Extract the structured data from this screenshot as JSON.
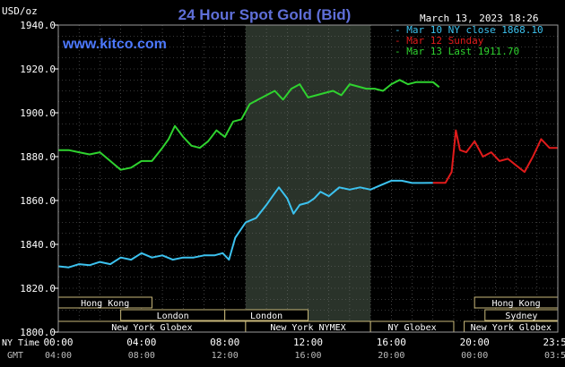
{
  "header": {
    "unit": "USD/oz",
    "title": "24 Hour Spot Gold (Bid)",
    "date": "March 13, 2023 18:26",
    "watermark": "www.kitco.com"
  },
  "colors": {
    "background": "#000000",
    "grid": "#6e6e6e",
    "text": "#ffffff",
    "title": "#5f6fd8",
    "watermark": "#4d79ff",
    "series_prev": "#3cc2ef",
    "series_sunday": "#e11b1b",
    "series_current": "#2fd32f",
    "highlight_band": "#2a332a",
    "market_box_fill": "#000000",
    "market_box_border": "#c8b87a",
    "market_text": "#ffffff"
  },
  "chart_data": {
    "type": "line",
    "ylabel": "USD/oz",
    "ylim": [
      1800,
      1940
    ],
    "yticks": [
      "1940.0",
      "1920.0",
      "1900.0",
      "1880.0",
      "1860.0",
      "1840.0",
      "1820.0",
      "1800.0"
    ],
    "ytick_values": [
      1940,
      1920,
      1900,
      1880,
      1860,
      1840,
      1820,
      1800
    ],
    "xlim_hours": [
      0,
      24
    ],
    "x_ny_labels": [
      "00:00",
      "04:00",
      "08:00",
      "12:00",
      "16:00",
      "20:00",
      "23:59"
    ],
    "x_gmt_labels": [
      "04:00",
      "08:00",
      "12:00",
      "16:00",
      "20:00",
      "00:00",
      "03:59"
    ],
    "x_tick_hours": [
      0,
      4,
      8,
      12,
      16,
      20,
      24
    ],
    "x_row_labels": {
      "ny": "NY Time",
      "gmt": "GMT"
    },
    "highlight_hours": [
      9,
      15
    ],
    "legend": [
      {
        "label": "Mar 10 NY close 1868.10",
        "color": "#3cc2ef"
      },
      {
        "label": "Mar 12 Sunday",
        "color": "#e11b1b"
      },
      {
        "label": "Mar 13 Last 1911.70",
        "color": "#2fd32f"
      }
    ],
    "series": [
      {
        "name": "Mar 10 NY close 1868.10",
        "color": "#3cc2ef",
        "x": [
          0,
          0.5,
          1,
          1.5,
          2,
          2.5,
          3,
          3.5,
          4,
          4.5,
          5,
          5.5,
          6,
          6.5,
          7,
          7.5,
          7.9,
          8.2,
          8.5,
          9,
          9.5,
          10,
          10.3,
          10.6,
          11,
          11.3,
          11.6,
          12,
          12.3,
          12.6,
          13,
          13.5,
          14,
          14.5,
          15,
          15.5,
          16,
          16.5,
          17,
          17.5,
          18
        ],
        "y": [
          1830,
          1829.5,
          1831,
          1830.5,
          1832,
          1831,
          1834,
          1833,
          1836,
          1834,
          1835,
          1833,
          1834,
          1834,
          1835,
          1835,
          1836,
          1833,
          1843,
          1850,
          1852,
          1858,
          1862,
          1866,
          1861,
          1854,
          1858,
          1859,
          1861,
          1864,
          1862,
          1866,
          1865,
          1866,
          1865,
          1867,
          1869,
          1869,
          1868,
          1868,
          1868.1
        ]
      },
      {
        "name": "Mar 12 Sunday",
        "color": "#e11b1b",
        "x": [
          18,
          18.6,
          18.9,
          19.1,
          19.3,
          19.6,
          20,
          20.4,
          20.8,
          21.2,
          21.6,
          22,
          22.4,
          22.8,
          23.2,
          23.6,
          24
        ],
        "y": [
          1868.1,
          1868.1,
          1873,
          1892,
          1883,
          1882,
          1887,
          1880,
          1882,
          1878,
          1879,
          1876,
          1873,
          1880,
          1888,
          1884,
          1884
        ]
      },
      {
        "name": "Mar 13 Last 1911.70",
        "color": "#2fd32f",
        "x": [
          0,
          0.5,
          1,
          1.5,
          2,
          2.5,
          3,
          3.5,
          4,
          4.5,
          5,
          5.3,
          5.6,
          6,
          6.4,
          6.8,
          7.2,
          7.6,
          8,
          8.4,
          8.8,
          9.2,
          9.6,
          10,
          10.4,
          10.8,
          11.2,
          11.6,
          12,
          12.4,
          12.8,
          13.2,
          13.6,
          14,
          14.4,
          14.8,
          15.2,
          15.6,
          16,
          16.4,
          16.8,
          17.2,
          17.6,
          18,
          18.3
        ],
        "y": [
          1883,
          1883,
          1882,
          1881,
          1882,
          1878,
          1874,
          1875,
          1878,
          1878,
          1884,
          1888,
          1894,
          1889,
          1885,
          1884,
          1887,
          1892,
          1889,
          1896,
          1897,
          1904,
          1906,
          1908,
          1910,
          1906,
          1911,
          1913,
          1907,
          1908,
          1909,
          1910,
          1908,
          1913,
          1912,
          1911,
          1911,
          1910,
          1913,
          1915,
          1913,
          1914,
          1914,
          1914,
          1911.7
        ]
      }
    ]
  },
  "markets": [
    {
      "label": "Hong Kong",
      "start_hour": 0,
      "end_hour": 4.5,
      "row": 0
    },
    {
      "label": "London",
      "start_hour": 3,
      "end_hour": 8,
      "row": 1
    },
    {
      "label": "London",
      "start_hour": 8,
      "end_hour": 12,
      "row": 1
    },
    {
      "label": "New York Globex",
      "start_hour": 0,
      "end_hour": 9,
      "row": 2
    },
    {
      "label": "New York NYMEX",
      "start_hour": 9,
      "end_hour": 15,
      "row": 2
    },
    {
      "label": "NY Globex",
      "start_hour": 15,
      "end_hour": 19,
      "row": 2
    },
    {
      "label": "Hong Kong",
      "start_hour": 20,
      "end_hour": 24,
      "row": 0
    },
    {
      "label": "Sydney",
      "start_hour": 20.5,
      "end_hour": 24,
      "row": 1
    },
    {
      "label": "New York Globex",
      "start_hour": 19.5,
      "end_hour": 24,
      "row": 2
    }
  ]
}
